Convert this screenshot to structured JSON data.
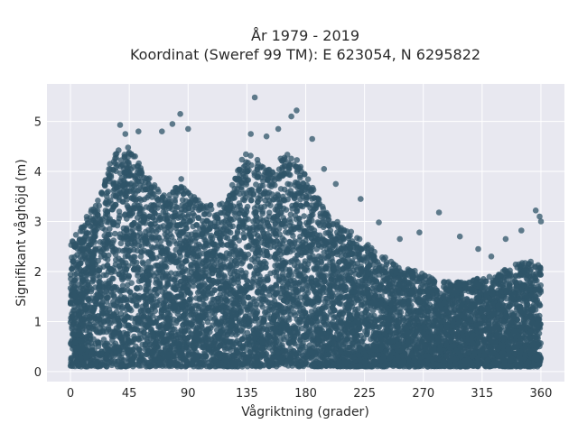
{
  "chart_data": {
    "type": "scatter",
    "title": "År 1979 - 2019",
    "subtitle": "Koordinat (Sweref 99 TM): E 623054, N 6295822",
    "xlabel": "Vågriktning (grader)",
    "ylabel": "Signifikant våghöjd (m)",
    "xlim": [
      -18,
      378
    ],
    "ylim": [
      -0.2,
      5.75
    ],
    "xticks": [
      0,
      45,
      90,
      135,
      180,
      225,
      270,
      315,
      360
    ],
    "yticks": [
      0,
      1,
      2,
      3,
      4,
      5
    ],
    "grid": true,
    "colors": {
      "points": "#2f5468",
      "plot_bg": "#e8e8f0",
      "grid": "#ffffff"
    },
    "envelope": {
      "x": [
        0,
        10,
        20,
        30,
        38,
        45,
        55,
        65,
        75,
        85,
        90,
        100,
        110,
        120,
        128,
        135,
        145,
        155,
        165,
        175,
        185,
        195,
        205,
        215,
        225,
        235,
        245,
        255,
        265,
        275,
        285,
        295,
        305,
        315,
        325,
        335,
        345,
        355,
        360
      ],
      "y_max": [
        2.6,
        3.0,
        3.4,
        4.2,
        4.6,
        4.5,
        4.1,
        3.7,
        3.5,
        3.9,
        3.6,
        3.4,
        3.3,
        3.4,
        4.1,
        4.4,
        4.2,
        4.1,
        4.4,
        4.2,
        3.7,
        3.2,
        3.0,
        2.8,
        2.6,
        2.4,
        2.2,
        2.1,
        2.0,
        1.9,
        1.8,
        1.8,
        1.8,
        1.9,
        1.9,
        2.1,
        2.2,
        2.2,
        2.1
      ],
      "y_min": 0.1
    },
    "outliers": [
      {
        "x": 38,
        "y": 4.93
      },
      {
        "x": 42,
        "y": 4.75
      },
      {
        "x": 52,
        "y": 4.8
      },
      {
        "x": 70,
        "y": 4.8
      },
      {
        "x": 78,
        "y": 4.95
      },
      {
        "x": 84,
        "y": 5.15
      },
      {
        "x": 90,
        "y": 4.85
      },
      {
        "x": 138,
        "y": 4.75
      },
      {
        "x": 141,
        "y": 5.48
      },
      {
        "x": 150,
        "y": 4.7
      },
      {
        "x": 159,
        "y": 4.85
      },
      {
        "x": 169,
        "y": 5.1
      },
      {
        "x": 173,
        "y": 5.22
      },
      {
        "x": 185,
        "y": 4.65
      },
      {
        "x": 194,
        "y": 4.05
      },
      {
        "x": 203,
        "y": 3.75
      },
      {
        "x": 222,
        "y": 3.45
      },
      {
        "x": 236,
        "y": 2.98
      },
      {
        "x": 252,
        "y": 2.65
      },
      {
        "x": 267,
        "y": 2.78
      },
      {
        "x": 282,
        "y": 3.18
      },
      {
        "x": 298,
        "y": 2.7
      },
      {
        "x": 312,
        "y": 2.45
      },
      {
        "x": 322,
        "y": 2.3
      },
      {
        "x": 333,
        "y": 2.65
      },
      {
        "x": 345,
        "y": 2.82
      },
      {
        "x": 356,
        "y": 3.22
      },
      {
        "x": 359,
        "y": 3.1
      },
      {
        "x": 360,
        "y": 3.0
      }
    ],
    "n_points": 9000
  }
}
